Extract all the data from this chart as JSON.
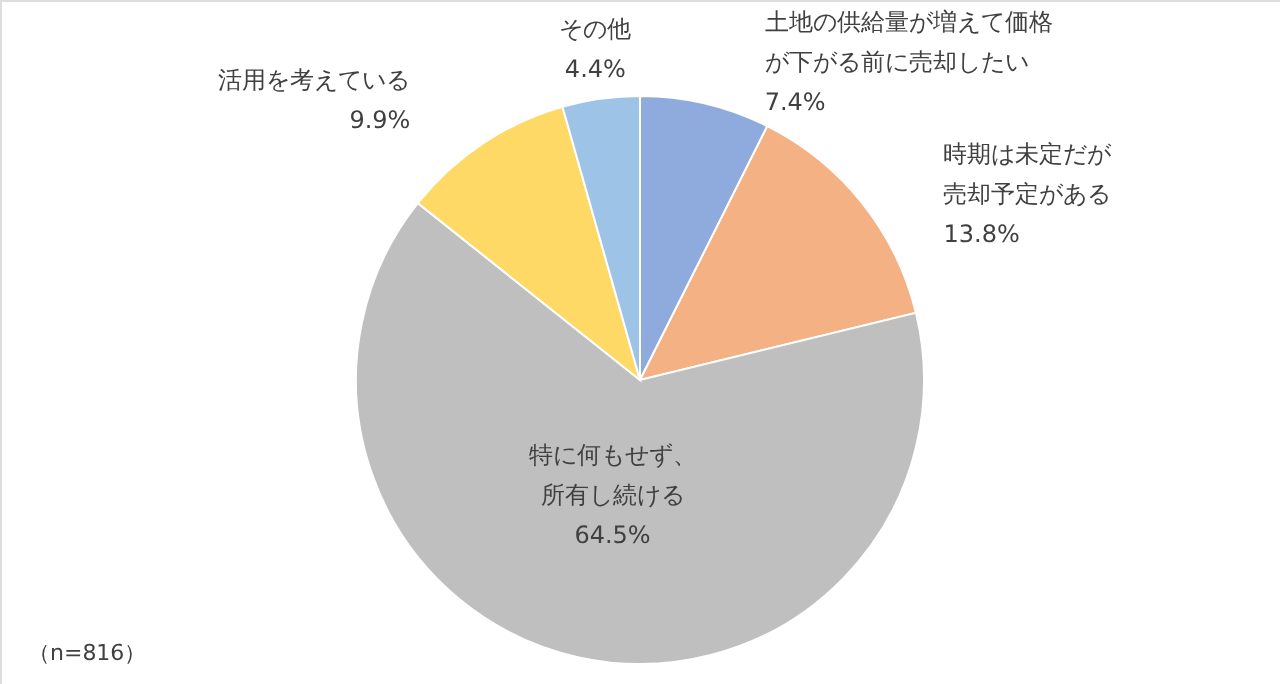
{
  "chart_data": {
    "type": "pie",
    "categories": [
      "土地の供給量が増えて価格が下がる前に売却したい",
      "時期は未定だが売却予定がある",
      "特に何もせず、所有し続ける",
      "活用を考えている",
      "その他"
    ],
    "values": [
      7.4,
      13.8,
      64.5,
      9.9,
      4.4
    ],
    "value_labels": [
      "7.4%",
      "13.8%",
      "64.5%",
      "9.9%",
      "4.4%"
    ],
    "colors": [
      "#8faadc",
      "#f4b183",
      "#bfbfbf",
      "#ffd966",
      "#9dc3e6"
    ],
    "annotations": [
      "（n=816）"
    ]
  }
}
